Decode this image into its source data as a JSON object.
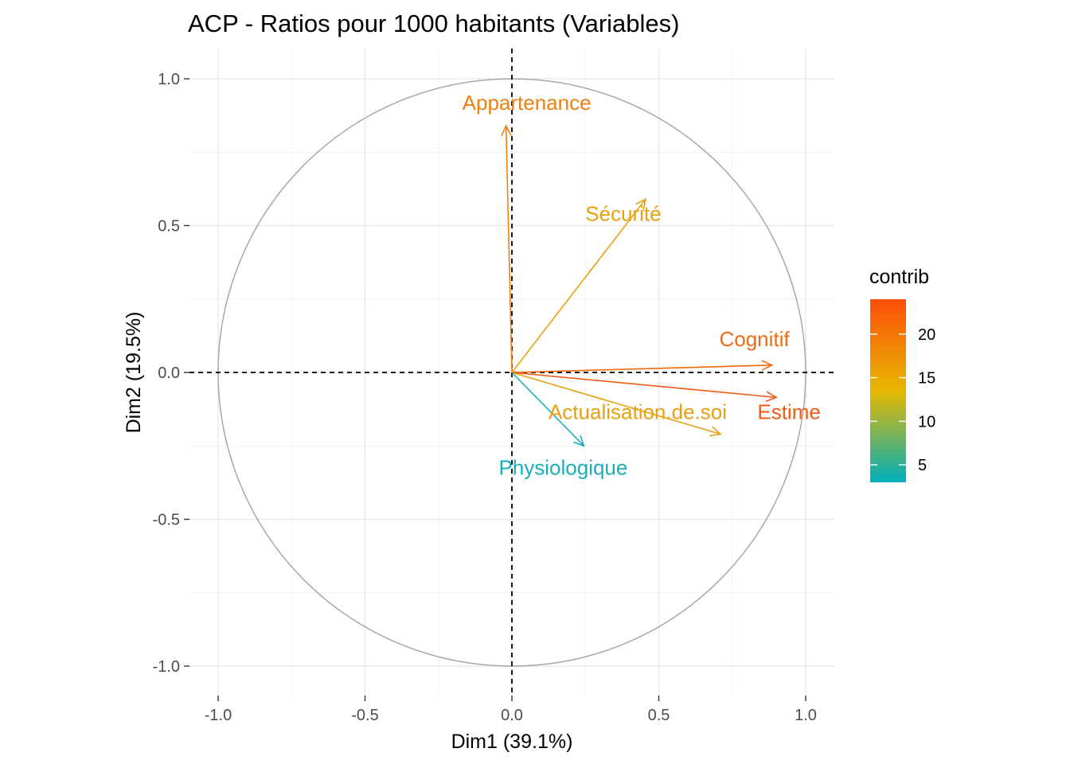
{
  "chart_data": {
    "type": "scatter",
    "title": "ACP - Ratios pour 1000 habitants (Variables)",
    "xlabel": "Dim1 (39.1%)",
    "ylabel": "Dim2 (19.5%)",
    "xlim": [
      -1.1,
      1.1
    ],
    "ylim": [
      -1.1,
      1.1
    ],
    "x_ticks": [
      -1.0,
      -0.5,
      0.0,
      0.5,
      1.0
    ],
    "y_ticks": [
      -1.0,
      -0.5,
      0.0,
      0.5,
      1.0
    ],
    "x_tick_labels": [
      "-1.0",
      "-0.5",
      "0.0",
      "0.5",
      "1.0"
    ],
    "y_tick_labels": [
      "-1.0",
      "-0.5",
      "0.0",
      "0.5",
      "1.0"
    ],
    "grid": true,
    "correlation_circle": true,
    "reference_lines": [
      0,
      0
    ],
    "variables": [
      {
        "name": "Appartenance",
        "x": -0.02,
        "y": 0.84,
        "contrib": 19,
        "color": "#F07F10"
      },
      {
        "name": "Sécurité",
        "x": 0.455,
        "y": 0.59,
        "contrib": 16,
        "color": "#E8A010"
      },
      {
        "name": "Cognitif",
        "x": 0.885,
        "y": 0.025,
        "contrib": 22,
        "color": "#F26B10"
      },
      {
        "name": "Estime",
        "x": 0.9,
        "y": -0.085,
        "contrib": 23,
        "color": "#F05A14"
      },
      {
        "name": "Actualisation.de.soi",
        "x": 0.71,
        "y": -0.21,
        "contrib": 16,
        "color": "#E8A010"
      },
      {
        "name": "Physiologique",
        "x": 0.245,
        "y": -0.25,
        "contrib": 4,
        "color": "#1AAFB8"
      }
    ],
    "legend": {
      "title": "contrib",
      "position": "right",
      "ticks": [
        5,
        10,
        15,
        20
      ],
      "tick_labels": [
        "5",
        "10",
        "15",
        "20"
      ],
      "range": [
        3,
        24
      ],
      "gradient_colors": [
        "#00AFBB",
        "#E7B800",
        "#FC4E07"
      ]
    }
  }
}
